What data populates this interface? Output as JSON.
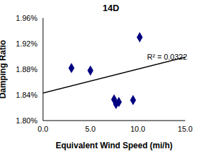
{
  "chart_data": {
    "type": "scatter",
    "title": "14D",
    "x_label": "Equivalent Wind Speed (mi/h)",
    "y_label": "Damping Ratio",
    "annotation": "R² = 0.0322",
    "xlim": [
      0,
      15
    ],
    "xticks": [
      {
        "value": 0,
        "label": "0.0"
      },
      {
        "value": 5,
        "label": "5.0"
      },
      {
        "value": 10,
        "label": "10.0"
      },
      {
        "value": 15,
        "label": "15.0"
      }
    ],
    "ylim": [
      1.8,
      1.96
    ],
    "yticks": [
      {
        "value": 1.8,
        "label": "1.80%"
      },
      {
        "value": 1.84,
        "label": "1.84%"
      },
      {
        "value": 1.88,
        "label": "1.88%"
      },
      {
        "value": 1.92,
        "label": "1.92%"
      },
      {
        "value": 1.96,
        "label": "1.96%"
      }
    ],
    "grid": false,
    "series": [
      {
        "type": "scatter",
        "marker": "diamond",
        "color": "#000080",
        "x": [
          3.0,
          5.0,
          7.5,
          7.7,
          8.0,
          9.5,
          10.2
        ],
        "values": [
          1.882,
          1.878,
          1.833,
          1.826,
          1.829,
          1.832,
          1.93
        ]
      },
      {
        "type": "line",
        "line_style": "solid",
        "color": "#000000",
        "x": [
          0,
          15
        ],
        "values": [
          1.843,
          1.899
        ]
      }
    ]
  }
}
